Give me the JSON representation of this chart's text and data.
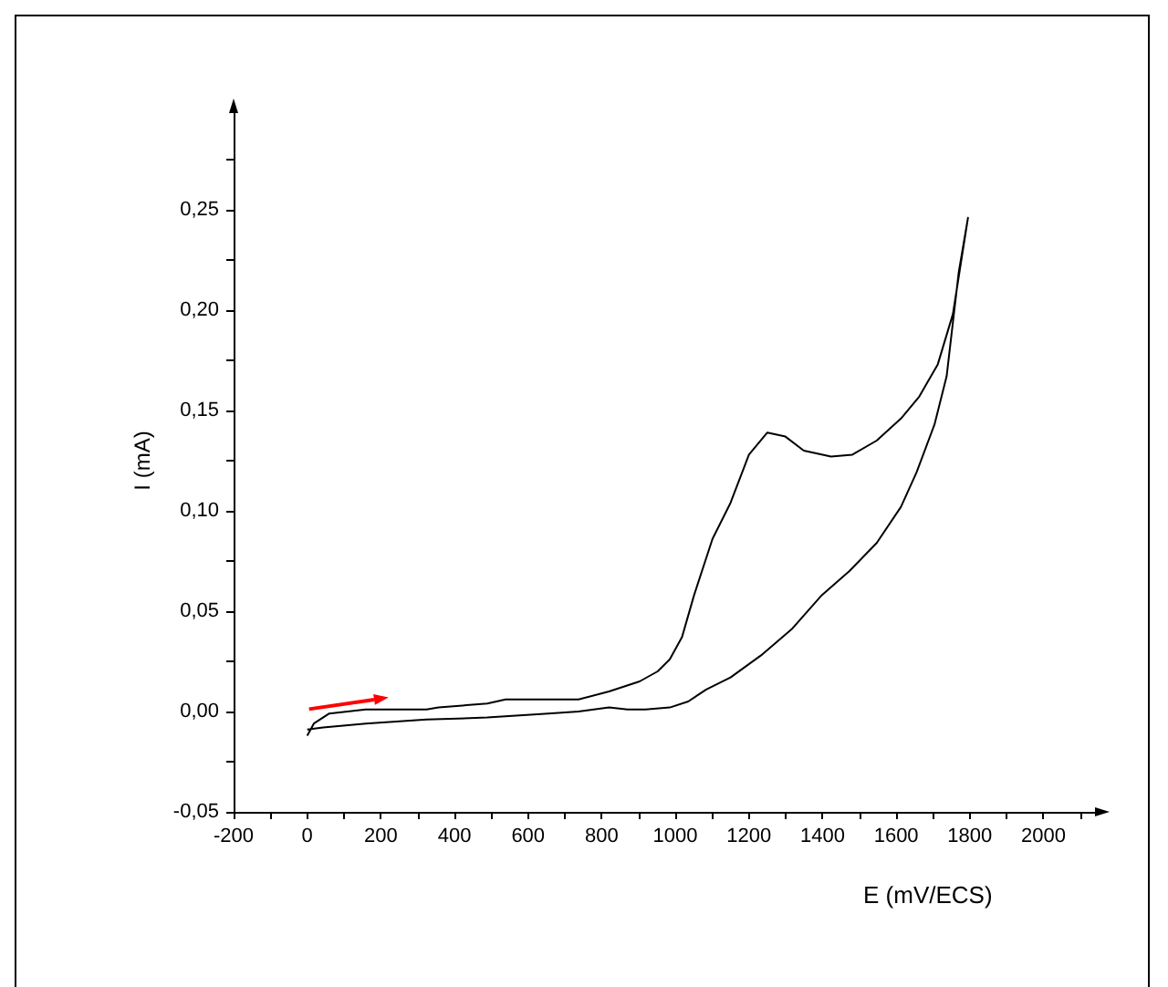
{
  "chart_data": {
    "type": "line",
    "xlabel": "E (mV/ECS)",
    "ylabel": "I (mA)",
    "xlim": [
      -200,
      2150
    ],
    "ylim": [
      -0.05,
      0.3
    ],
    "xticks": [
      -200,
      {
        "value": -100,
        "label": null
      },
      0,
      {
        "value": 100,
        "label": null
      },
      200,
      {
        "value": 300,
        "label": null
      },
      400,
      {
        "value": 500,
        "label": null
      },
      600,
      {
        "value": 700,
        "label": null
      },
      800,
      {
        "value": 900,
        "label": null
      },
      1000,
      {
        "value": 1100,
        "label": null
      },
      1200,
      {
        "value": 1300,
        "label": null
      },
      1400,
      {
        "value": 1500,
        "label": null
      },
      1600,
      {
        "value": 1700,
        "label": null
      },
      1800,
      {
        "value": 1900,
        "label": null
      },
      2000,
      {
        "value": 2100,
        "label": null
      }
    ],
    "yticks": [
      {
        "value": -0.05,
        "label": "-0,05"
      },
      {
        "value": -0.025,
        "label": null
      },
      {
        "value": 0,
        "label": "0,00"
      },
      {
        "value": 0.025,
        "label": null
      },
      {
        "value": 0.05,
        "label": "0,05"
      },
      {
        "value": 0.075,
        "label": null
      },
      {
        "value": 0.1,
        "label": "0,10"
      },
      {
        "value": 0.125,
        "label": null
      },
      {
        "value": 0.15,
        "label": "0,15"
      },
      {
        "value": 0.175,
        "label": null
      },
      {
        "value": 0.2,
        "label": "0,20"
      },
      {
        "value": 0.225,
        "label": null
      },
      {
        "value": 0.25,
        "label": "0,25"
      },
      {
        "value": 0.275,
        "label": null
      }
    ],
    "grid": false,
    "marker": "none",
    "line_style": "solid",
    "series": [
      {
        "color": "#000000",
        "x": [
          0,
          18,
          60,
          159,
          324,
          357,
          489,
          539,
          655,
          737,
          820,
          903,
          952,
          985,
          1018,
          1051,
          1101,
          1150,
          1200,
          1250,
          1299,
          1349,
          1423,
          1481,
          1547,
          1613,
          1663,
          1713,
          1754,
          1795,
          1770,
          1737,
          1704,
          1655,
          1613,
          1547,
          1473,
          1398,
          1316,
          1233,
          1150,
          1084,
          1035,
          985,
          919,
          870,
          820,
          737,
          655,
          489,
          324,
          159,
          43,
          0
        ],
        "values": [
          -0.012,
          -0.006,
          -0.001,
          0.001,
          0.001,
          0.002,
          0.004,
          0.006,
          0.006,
          0.006,
          0.01,
          0.015,
          0.02,
          0.026,
          0.037,
          0.058,
          0.086,
          0.104,
          0.128,
          0.139,
          0.137,
          0.13,
          0.127,
          0.128,
          0.135,
          0.146,
          0.157,
          0.173,
          0.198,
          0.246,
          0.219,
          0.167,
          0.143,
          0.119,
          0.102,
          0.084,
          0.07,
          0.058,
          0.041,
          0.028,
          0.017,
          0.011,
          0.005,
          0.002,
          0.001,
          0.001,
          0.002,
          0.0,
          -0.001,
          -0.003,
          -0.004,
          -0.006,
          -0.008,
          -0.009
        ]
      }
    ]
  }
}
